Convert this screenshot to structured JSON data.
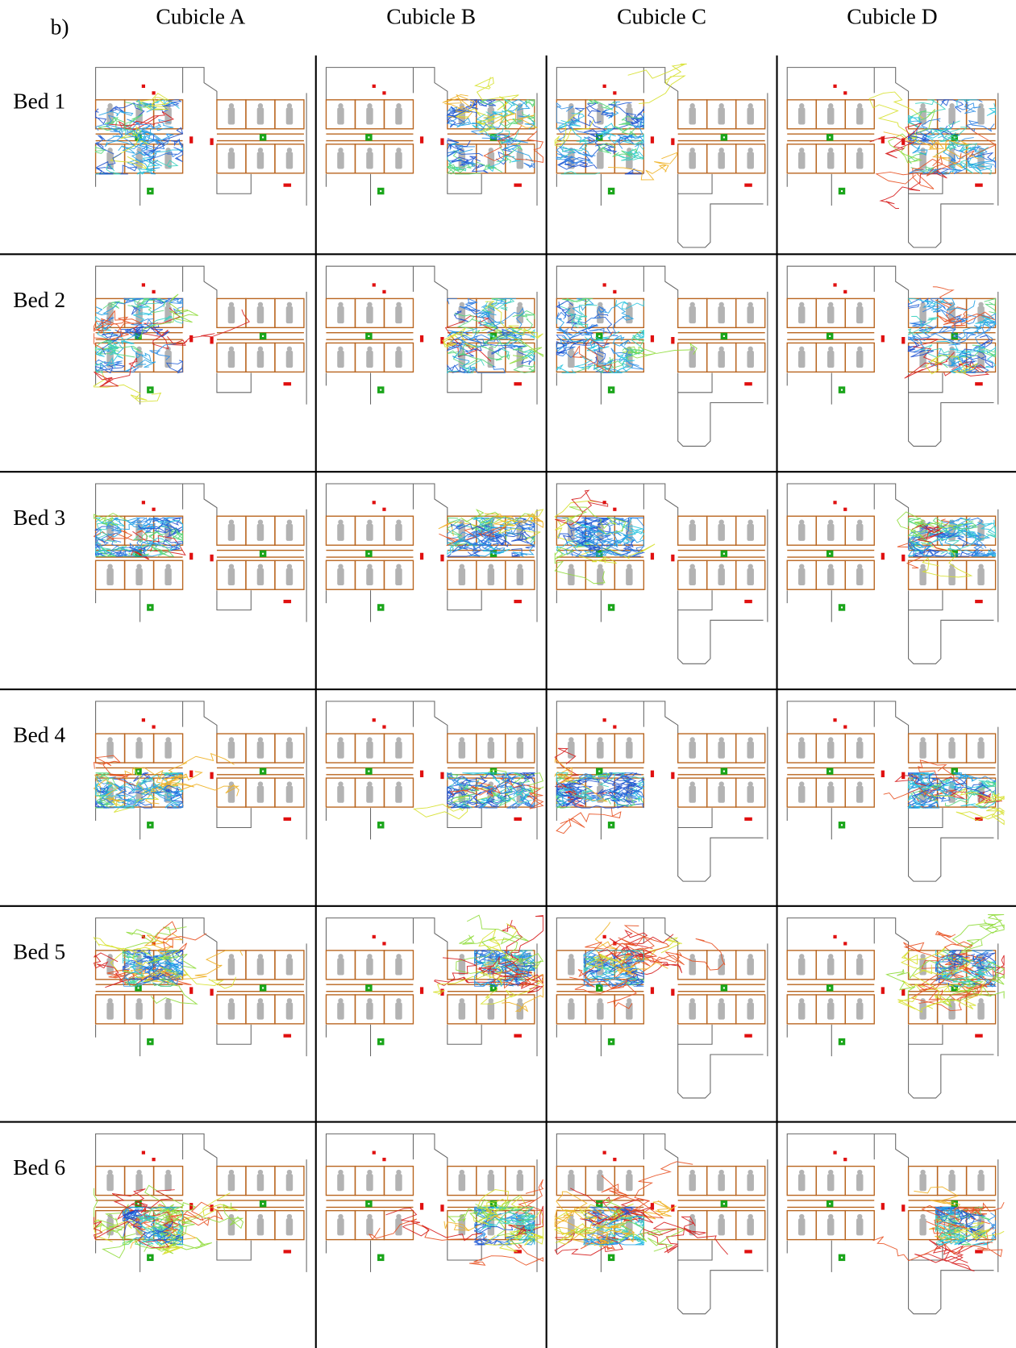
{
  "label": "b)",
  "columns": [
    "Cubicle A",
    "Cubicle B",
    "Cubicle C",
    "Cubicle D"
  ],
  "rows": [
    "Bed 1",
    "Bed 2",
    "Bed 3",
    "Bed 4",
    "Bed 5",
    "Bed 6"
  ]
}
